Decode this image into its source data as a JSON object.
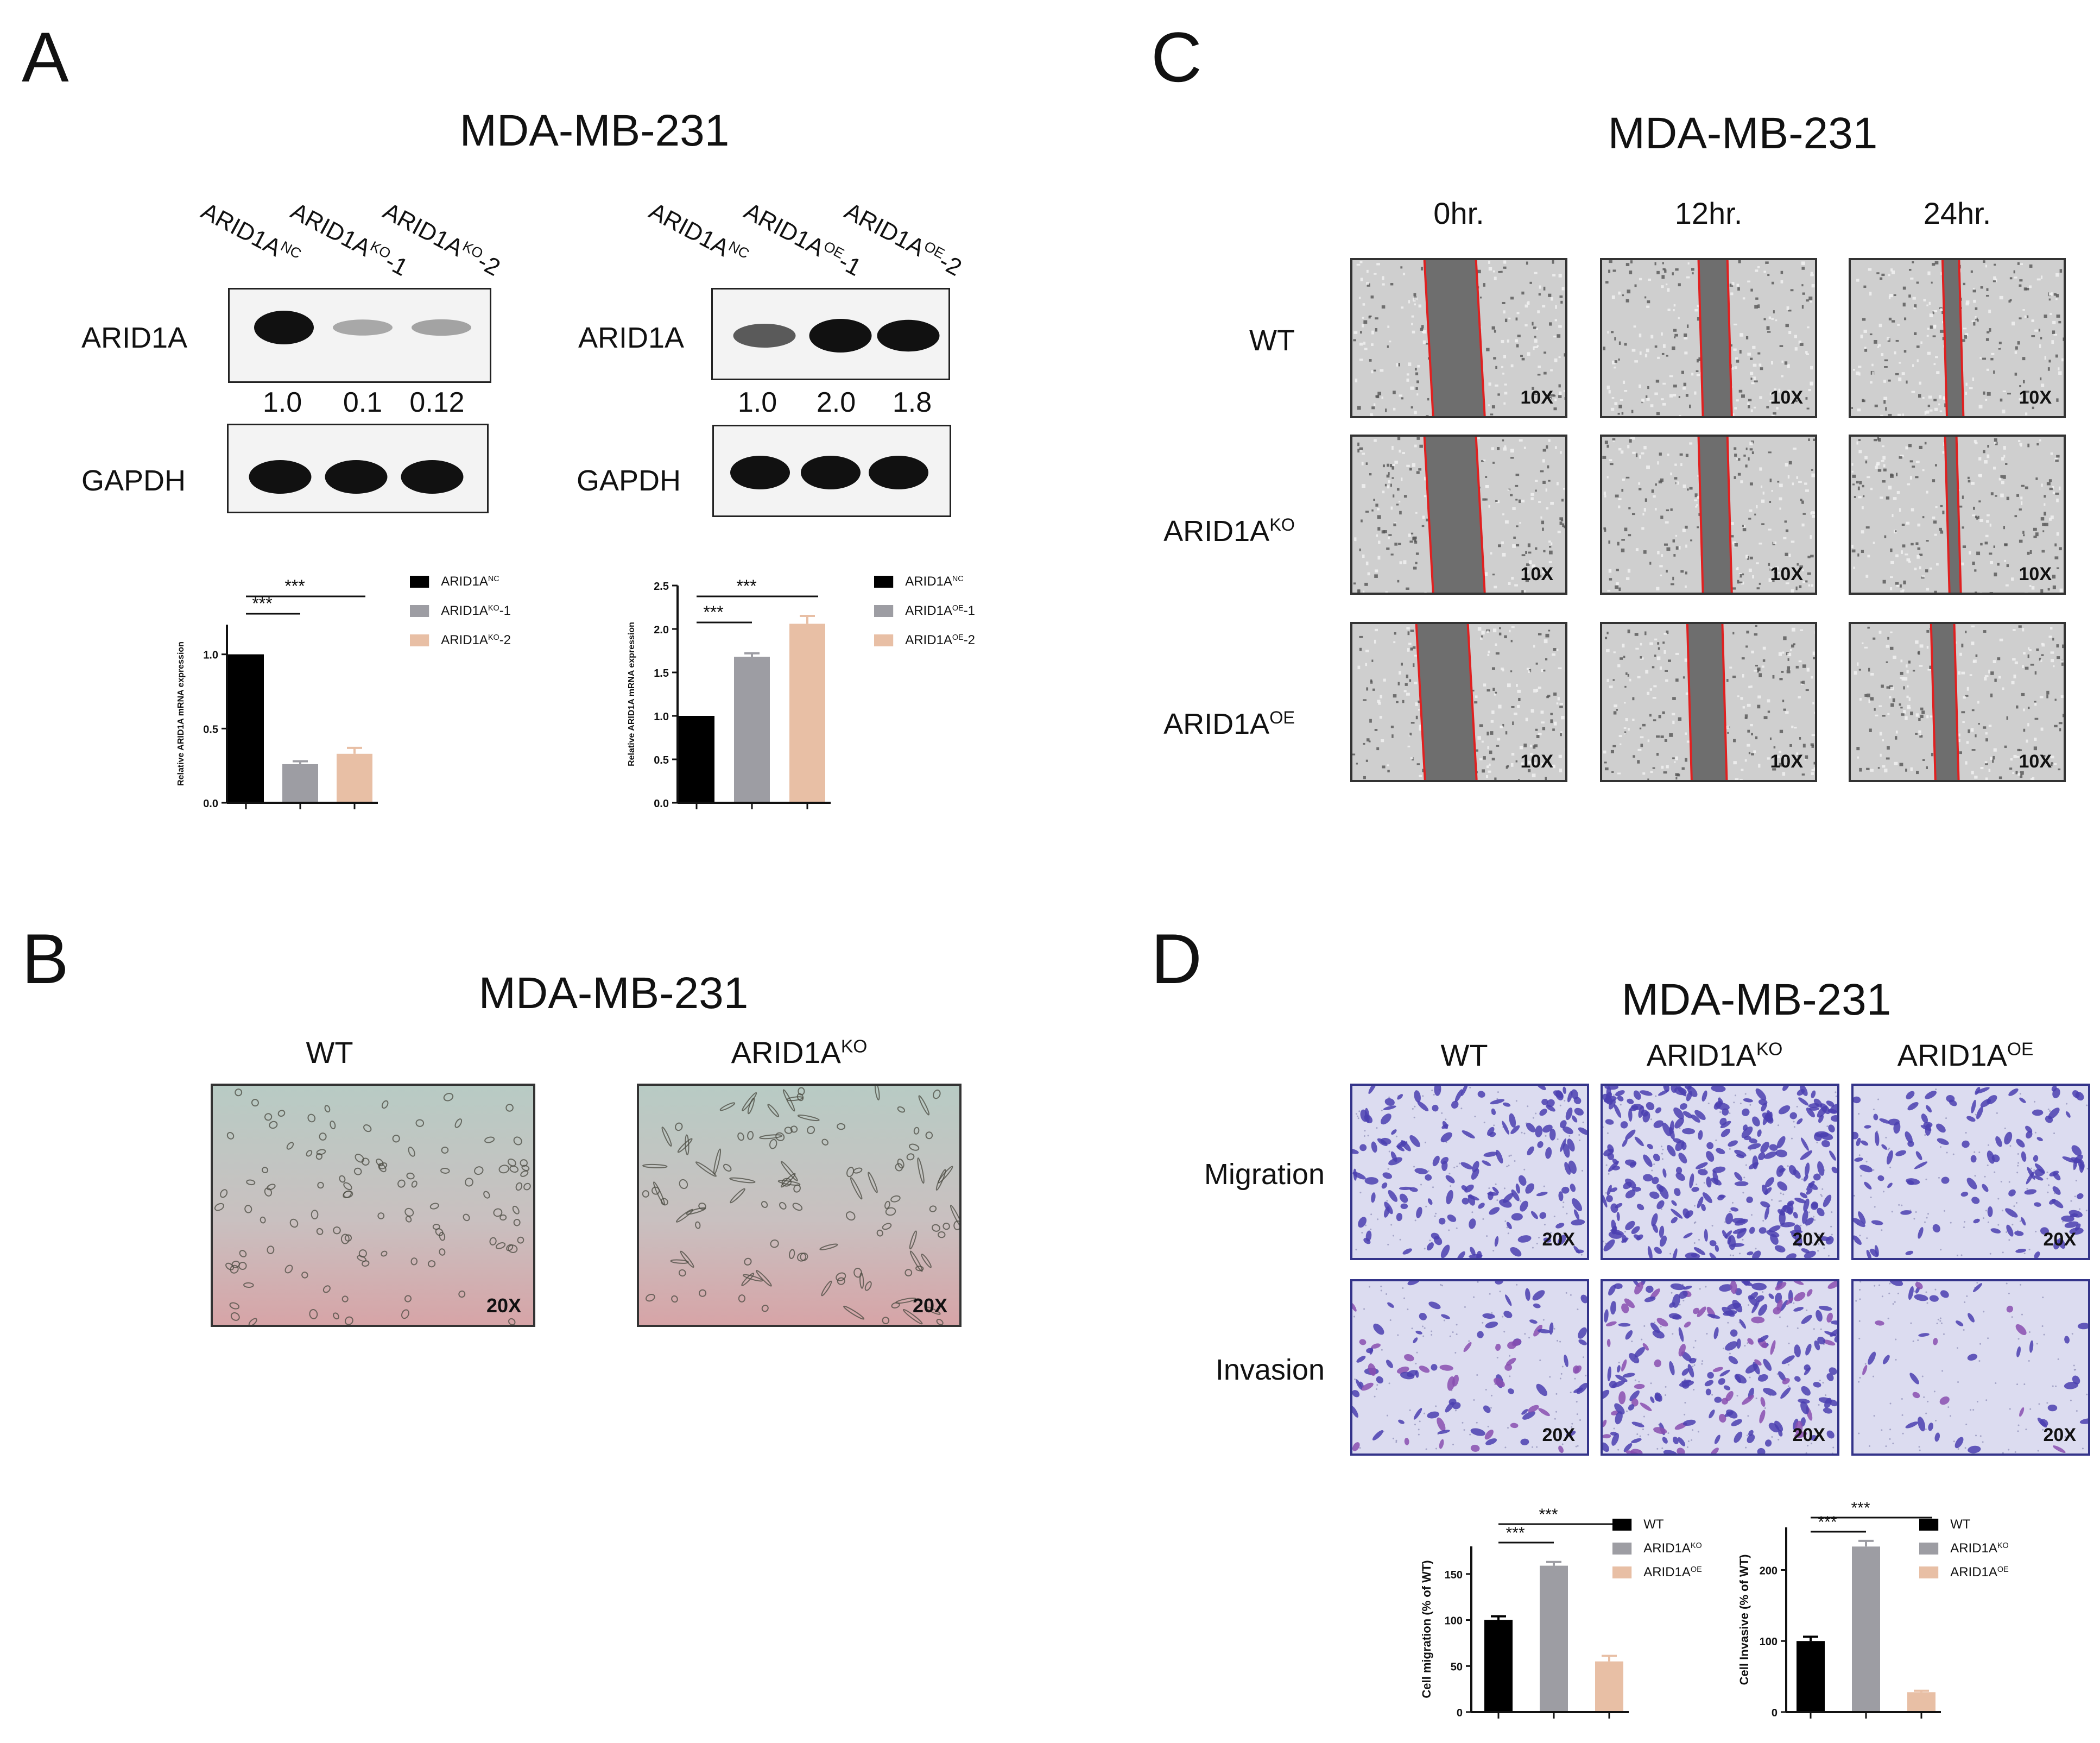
{
  "panels": {
    "A": {
      "label": "A",
      "title": "MDA-MB-231",
      "blot_left": {
        "lanes": [
          {
            "base": "ARID1A",
            "sup": "NC",
            "suffix": ""
          },
          {
            "base": "ARID1A",
            "sup": "KO",
            "suffix": "-1"
          },
          {
            "base": "ARID1A",
            "sup": "KO",
            "suffix": "-2"
          }
        ],
        "row1_label": "ARID1A",
        "row2_label": "GAPDH",
        "quant": [
          "1.0",
          "0.1",
          "0.12"
        ],
        "band_level": [
          1.0,
          0.1,
          0.12
        ]
      },
      "blot_right": {
        "lanes": [
          {
            "base": "ARID1A",
            "sup": "NC",
            "suffix": ""
          },
          {
            "base": "ARID1A",
            "sup": "OE",
            "suffix": "-1"
          },
          {
            "base": "ARID1A",
            "sup": "OE",
            "suffix": "-2"
          }
        ],
        "row1_label": "ARID1A",
        "row2_label": "GAPDH",
        "quant": [
          "1.0",
          "2.0",
          "1.8"
        ],
        "band_level": [
          1.0,
          2.0,
          1.8
        ]
      }
    },
    "B": {
      "label": "B",
      "title": "MDA-MB-231",
      "columns": [
        {
          "base": "WT",
          "sup": ""
        },
        {
          "base": "ARID1A",
          "sup": "KO"
        }
      ],
      "magnification": "20X"
    },
    "C": {
      "label": "C",
      "title": "MDA-MB-231",
      "time_points": [
        "0hr.",
        "12hr.",
        "24hr."
      ],
      "rows": [
        {
          "base": "WT",
          "sup": ""
        },
        {
          "base": "ARID1A",
          "sup": "KO"
        },
        {
          "base": "ARID1A",
          "sup": "OE"
        }
      ],
      "magnification": "10X",
      "wound_width_relative": [
        [
          1.0,
          0.56,
          0.32
        ],
        [
          1.0,
          0.56,
          0.22
        ],
        [
          1.0,
          0.68,
          0.45
        ]
      ]
    },
    "D": {
      "label": "D",
      "title": "MDA-MB-231",
      "columns": [
        {
          "base": "WT",
          "sup": ""
        },
        {
          "base": "ARID1A",
          "sup": "KO"
        },
        {
          "base": "ARID1A",
          "sup": "OE"
        }
      ],
      "rows": [
        "Migration",
        "Invasion"
      ],
      "magnification": "20X"
    }
  },
  "colors": {
    "black_bar": "#000000",
    "gray_bar": "#9d9da3",
    "peach_bar": "#e8bfa5",
    "wound_line": "#e02020",
    "crystal_violet": "#4b3fb0",
    "membrane": "#dcdcf0"
  },
  "chart_data": [
    {
      "id": "A_left",
      "type": "bar",
      "categories": [
        "ARID1A^NC",
        "ARID1A^KO-1",
        "ARID1A^KO-2"
      ],
      "legend": [
        {
          "base": "ARID1A",
          "sup": "NC",
          "suffix": ""
        },
        {
          "base": "ARID1A",
          "sup": "KO",
          "suffix": "-1"
        },
        {
          "base": "ARID1A",
          "sup": "KO",
          "suffix": "-2"
        }
      ],
      "values": [
        1.0,
        0.26,
        0.33
      ],
      "errors": [
        0.0,
        0.02,
        0.04
      ],
      "ylabel": "Relative ARID1A mRNA expression",
      "ylim": [
        0,
        1.2
      ],
      "yticks": [
        "0.0",
        "0.5",
        "1.0"
      ],
      "significance": [
        "***",
        "***"
      ],
      "legend_position": "right"
    },
    {
      "id": "A_right",
      "type": "bar",
      "categories": [
        "ARID1A^NC",
        "ARID1A^OE-1",
        "ARID1A^OE-2"
      ],
      "legend": [
        {
          "base": "ARID1A",
          "sup": "NC",
          "suffix": ""
        },
        {
          "base": "ARID1A",
          "sup": "OE",
          "suffix": "-1"
        },
        {
          "base": "ARID1A",
          "sup": "OE",
          "suffix": "-2"
        }
      ],
      "values": [
        1.0,
        1.68,
        2.06
      ],
      "errors": [
        0.0,
        0.04,
        0.09
      ],
      "ylabel": "Relative ARID1A mRNA expression",
      "ylim": [
        0,
        2.5
      ],
      "yticks": [
        "0.0",
        "0.5",
        "1.0",
        "1.5",
        "2.0",
        "2.5"
      ],
      "significance": [
        "***",
        "***"
      ],
      "legend_position": "right"
    },
    {
      "id": "D_migration",
      "type": "bar",
      "categories": [
        "WT",
        "ARID1A^KO",
        "ARID1A^OE"
      ],
      "legend": [
        {
          "base": "WT",
          "sup": "",
          "suffix": ""
        },
        {
          "base": "ARID1A",
          "sup": "KO",
          "suffix": ""
        },
        {
          "base": "ARID1A",
          "sup": "OE",
          "suffix": ""
        }
      ],
      "values": [
        100,
        159,
        55
      ],
      "errors": [
        4,
        4,
        6
      ],
      "ylabel": "Cell migration (% of WT)",
      "ylim": [
        0,
        180
      ],
      "yticks": [
        "0",
        "50",
        "100",
        "150"
      ],
      "significance": [
        "***",
        "***"
      ],
      "legend_position": "right"
    },
    {
      "id": "D_invasion",
      "type": "bar",
      "categories": [
        "WT",
        "ARID1A^KO",
        "ARID1A^OE"
      ],
      "legend": [
        {
          "base": "WT",
          "sup": "",
          "suffix": ""
        },
        {
          "base": "ARID1A",
          "sup": "KO",
          "suffix": ""
        },
        {
          "base": "ARID1A",
          "sup": "OE",
          "suffix": ""
        }
      ],
      "values": [
        100,
        233,
        28
      ],
      "errors": [
        6,
        8,
        2
      ],
      "ylabel": "Cell Invasive (% of WT)",
      "ylim": [
        0,
        260
      ],
      "yticks": [
        "0",
        "100",
        "200"
      ],
      "significance": [
        "***",
        "***"
      ],
      "legend_position": "right"
    }
  ]
}
